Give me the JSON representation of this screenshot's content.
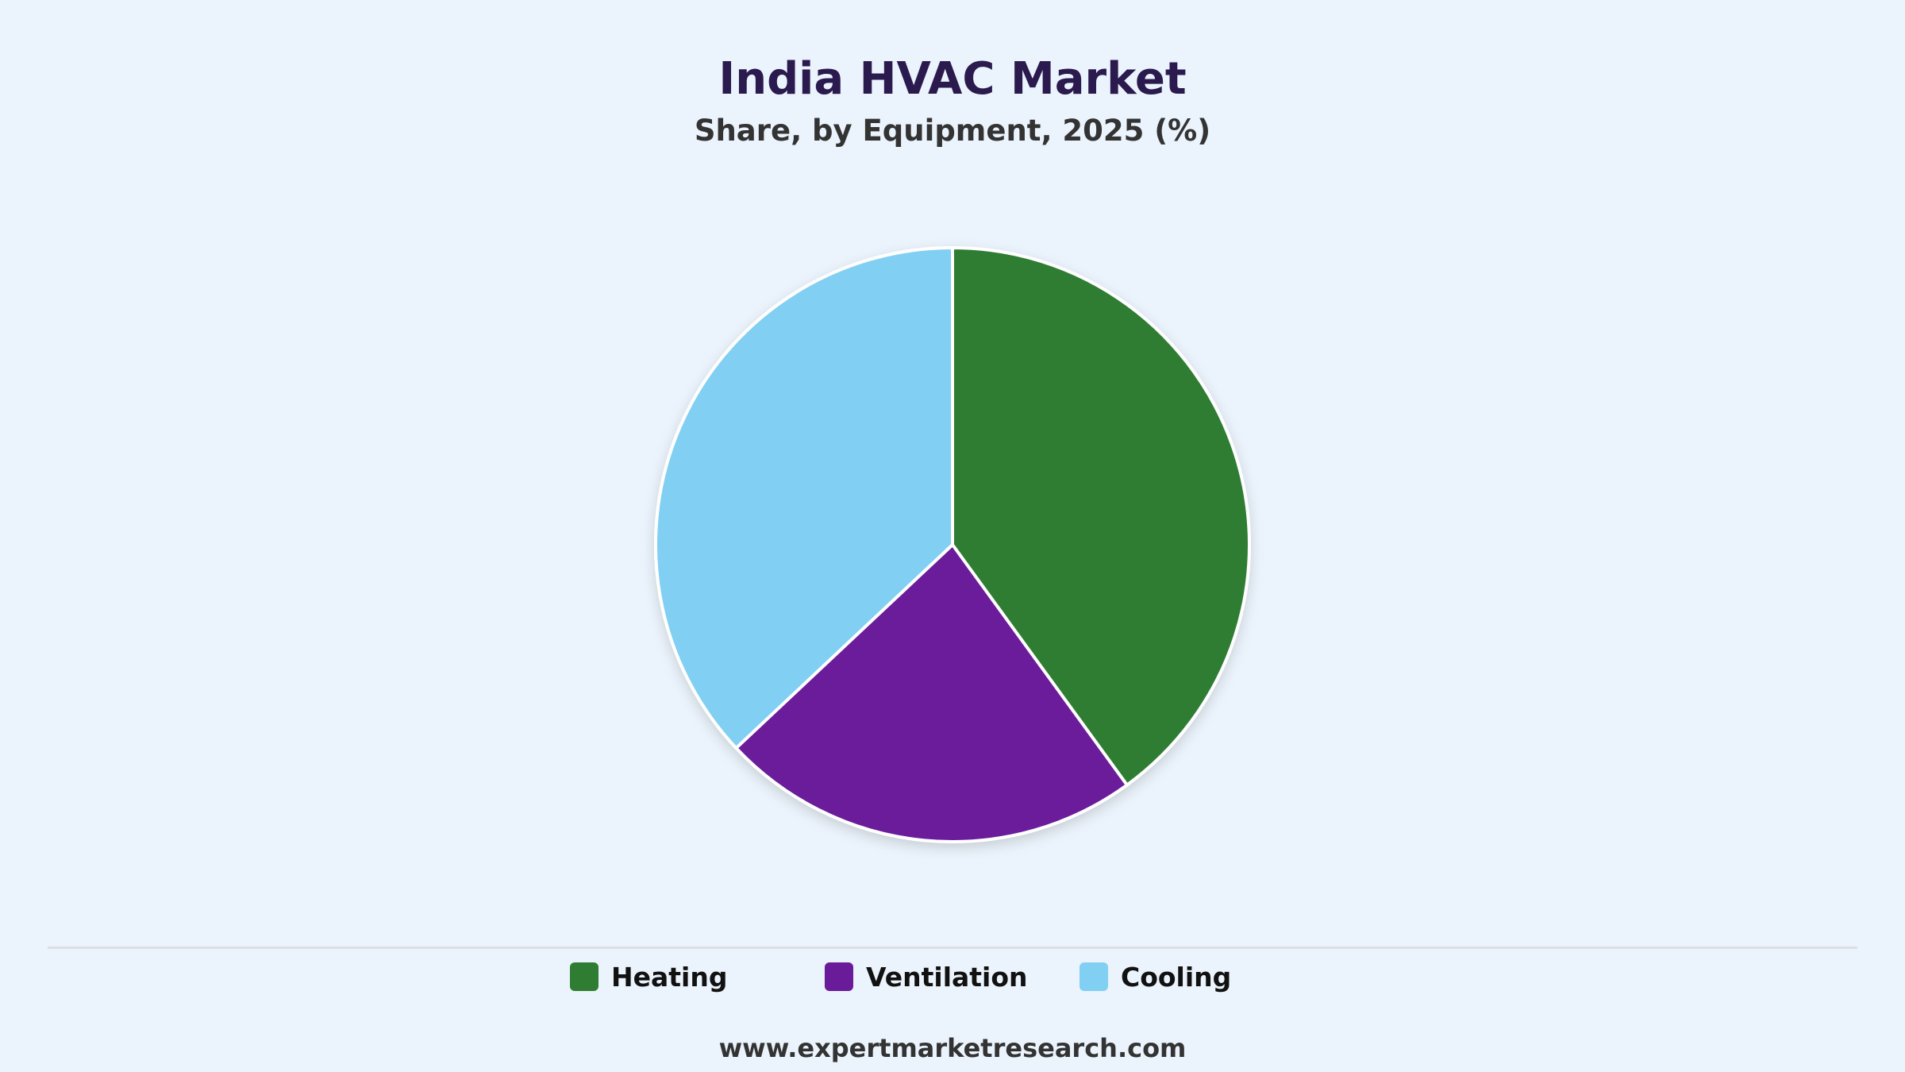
{
  "chart_data": {
    "type": "pie",
    "title": "India HVAC Market",
    "subtitle": "Share, by Equipment, 2025 (%)",
    "categories": [
      "Heating",
      "Ventilation",
      "Cooling"
    ],
    "values": [
      40,
      23,
      37
    ],
    "colors": [
      "#2e7d32",
      "#6a1b9a",
      "#81cff2"
    ],
    "legend": {
      "position": "bottom",
      "items": [
        {
          "label": "Heating",
          "color": "#2e7d32"
        },
        {
          "label": "Ventilation",
          "color": "#6a1b9a"
        },
        {
          "label": "Cooling",
          "color": "#81cff2"
        }
      ]
    }
  },
  "footer": {
    "source": "www.expertmarketresearch.com"
  }
}
